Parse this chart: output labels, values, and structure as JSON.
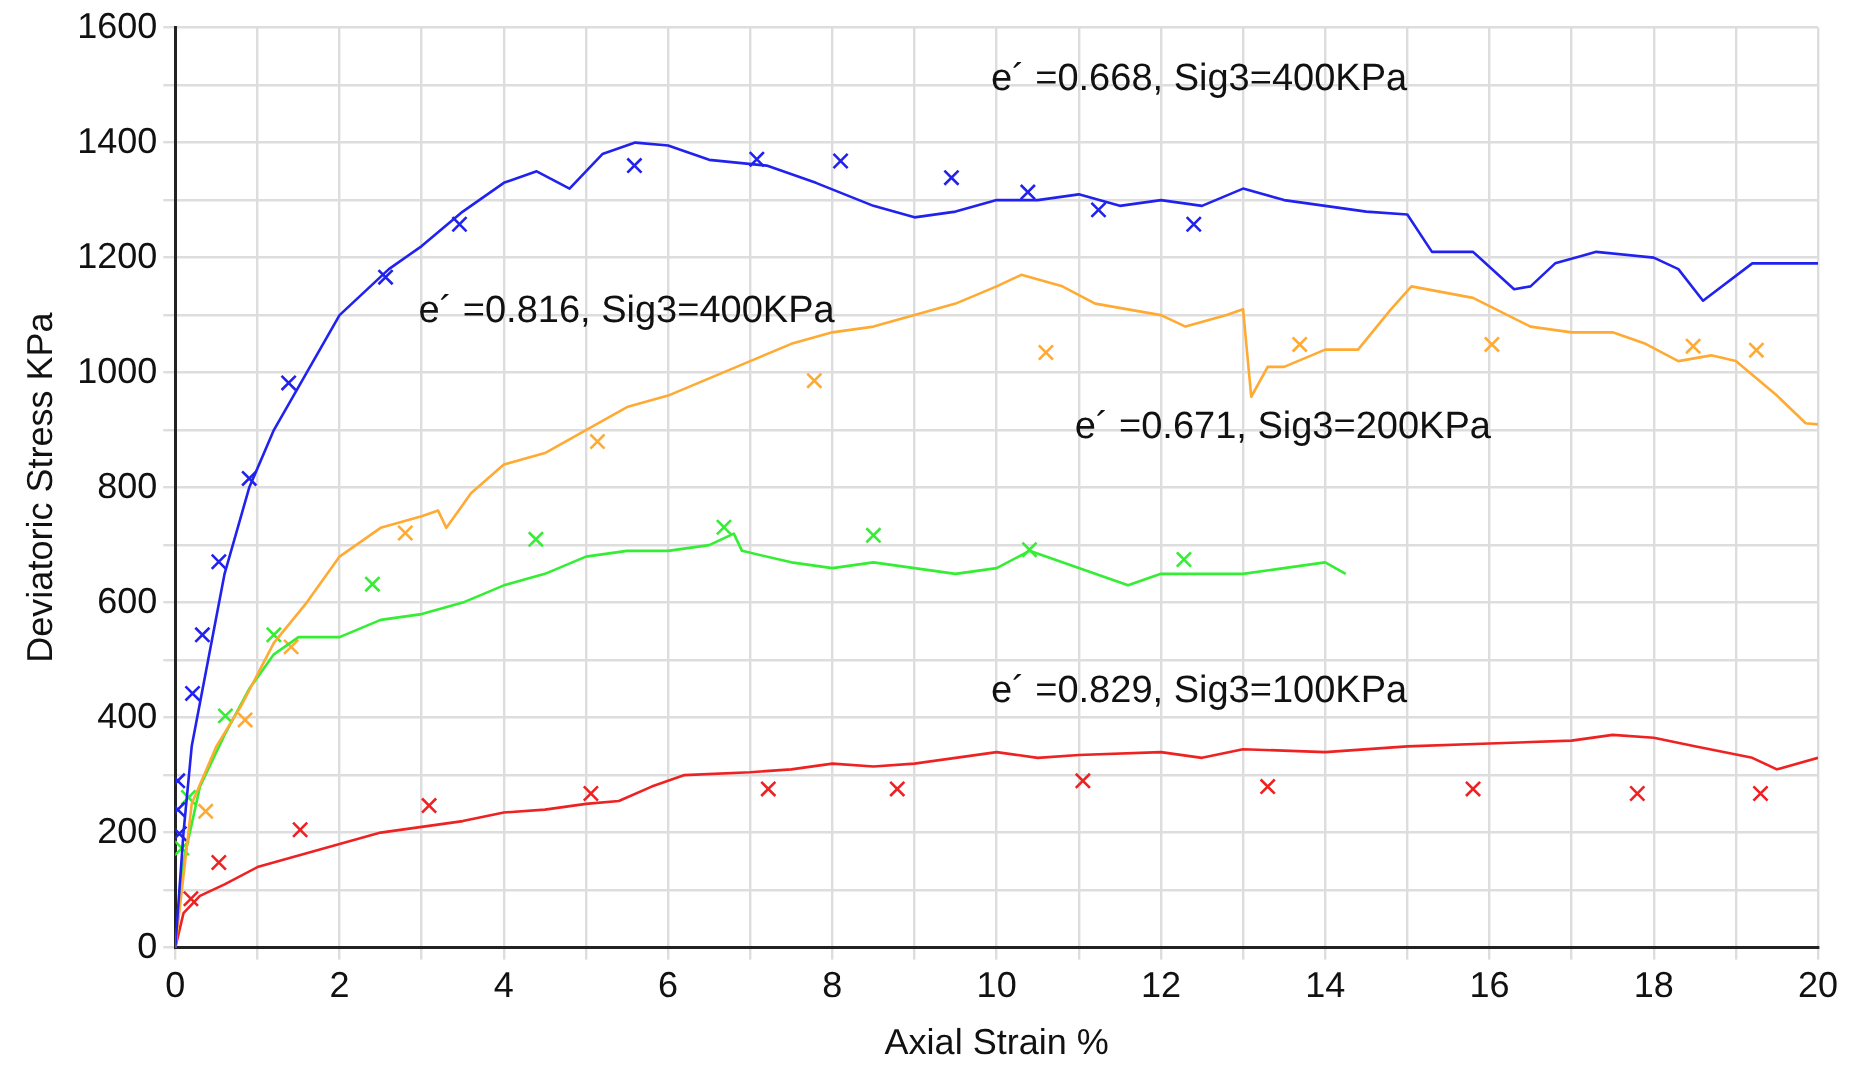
{
  "chart_data": {
    "type": "line",
    "xlabel": "Axial Strain %",
    "ylabel": "Deviatoric Stress KPa",
    "xlim": [
      0,
      20
    ],
    "ylim": [
      0,
      1600
    ],
    "xticks": [
      0,
      {
        "value": 1,
        "label": null
      },
      2,
      {
        "value": 3,
        "label": null
      },
      4,
      {
        "value": 5,
        "label": null
      },
      6,
      {
        "value": 7,
        "label": null
      },
      8,
      {
        "value": 9,
        "label": null
      },
      10,
      {
        "value": 11,
        "label": null
      },
      12,
      {
        "value": 13,
        "label": null
      },
      14,
      {
        "value": 15,
        "label": null
      },
      16,
      {
        "value": 17,
        "label": null
      },
      18,
      {
        "value": 19,
        "label": null
      },
      20
    ],
    "yticks": [
      0,
      {
        "value": 100,
        "label": null
      },
      200,
      {
        "value": 300,
        "label": null
      },
      400,
      {
        "value": 500,
        "label": null
      },
      600,
      {
        "value": 700,
        "label": null
      },
      800,
      {
        "value": 900,
        "label": null
      },
      1000,
      {
        "value": 1100,
        "label": null
      },
      1200,
      {
        "value": 1300,
        "label": null
      },
      1400,
      {
        "value": 1500,
        "label": null
      },
      1600
    ],
    "grid": true,
    "legend": false,
    "annotations": [
      "e´ =0.668, Sig3=400KPa",
      "e´ =0.816, Sig3=400KPa",
      "e´ =0.671, Sig3=200KPa",
      "e´ =0.829, Sig3=100KPa"
    ],
    "series": [
      {
        "type": "line",
        "color": "#2222ee",
        "marker": "none",
        "line_style": "solid",
        "x": [
          0,
          0.1,
          0.2,
          0.4,
          0.6,
          0.9,
          1.2,
          1.6,
          2.0,
          2.6,
          3.0,
          3.5,
          4.0,
          4.4,
          4.8,
          5.2,
          5.6,
          6.0,
          6.5,
          7.2,
          7.8,
          8.5,
          9.0,
          9.5,
          10.0,
          10.5,
          11.0,
          11.5,
          12.0,
          12.5,
          13.0,
          13.5,
          14.0,
          14.5,
          15.0,
          15.3,
          15.8,
          16.3,
          16.5,
          16.8,
          17.3,
          18.0,
          18.3,
          18.6,
          19.2,
          20
        ],
        "values": [
          0,
          200,
          350,
          500,
          650,
          800,
          900,
          1000,
          1100,
          1180,
          1220,
          1280,
          1330,
          1350,
          1320,
          1380,
          1400,
          1395,
          1370,
          1360,
          1330,
          1290,
          1270,
          1280,
          1300,
          1300,
          1310,
          1290,
          1300,
          1290,
          1320,
          1300,
          1290,
          1280,
          1275,
          1210,
          1210,
          1145,
          1150,
          1190,
          1210,
          1200,
          1180,
          1125,
          1190,
          1190
        ]
      },
      {
        "type": "line",
        "color": "#ffaa33",
        "marker": "none",
        "line_style": "solid",
        "x": [
          0,
          0.2,
          0.5,
          0.8,
          1.2,
          1.6,
          2.0,
          2.5,
          3.0,
          3.2,
          3.3,
          3.6,
          4.0,
          4.5,
          5.0,
          5.5,
          6.0,
          6.5,
          7.0,
          7.5,
          8.0,
          8.5,
          9.0,
          9.5,
          10.0,
          10.3,
          10.8,
          11.2,
          12.0,
          12.3,
          12.8,
          13.0,
          13.1,
          13.3,
          13.5,
          14.0,
          14.4,
          14.8,
          15.05,
          15.8,
          16.5,
          17.0,
          17.5,
          17.9,
          18.3,
          18.7,
          19.0,
          19.5,
          19.85,
          20
        ],
        "values": [
          0,
          250,
          350,
          420,
          530,
          600,
          680,
          730,
          750,
          760,
          730,
          790,
          840,
          860,
          900,
          940,
          960,
          990,
          1020,
          1050,
          1070,
          1080,
          1100,
          1120,
          1150,
          1170,
          1150,
          1120,
          1100,
          1080,
          1100,
          1110,
          958,
          1010,
          1010,
          1040,
          1040,
          1110,
          1150,
          1130,
          1080,
          1070,
          1070,
          1050,
          1020,
          1030,
          1020,
          960,
          912,
          910
        ]
      },
      {
        "type": "line",
        "color": "#33ee33",
        "marker": "none",
        "line_style": "solid",
        "x": [
          0,
          0.1,
          0.3,
          0.6,
          0.9,
          1.2,
          1.5,
          2.0,
          2.5,
          3.0,
          3.5,
          4.0,
          4.5,
          5.0,
          5.5,
          6.0,
          6.5,
          6.8,
          6.9,
          7.5,
          8.0,
          8.5,
          9.0,
          9.5,
          10.0,
          10.4,
          11.0,
          11.6,
          12.0,
          12.5,
          13.0,
          13.5,
          14.0,
          14.25
        ],
        "values": [
          0,
          150,
          280,
          370,
          450,
          510,
          540,
          540,
          570,
          580,
          600,
          630,
          650,
          680,
          690,
          690,
          700,
          720,
          690,
          670,
          660,
          670,
          660,
          650,
          660,
          690,
          660,
          630,
          650,
          650,
          650,
          660,
          670,
          650
        ]
      },
      {
        "type": "line",
        "color": "#ee2222",
        "marker": "none",
        "line_style": "solid",
        "x": [
          0,
          0.1,
          0.3,
          0.6,
          1.0,
          1.5,
          2.0,
          2.5,
          3.0,
          3.5,
          4.0,
          4.5,
          5.0,
          5.4,
          5.8,
          6.2,
          7.0,
          7.5,
          8.0,
          8.5,
          9.0,
          9.5,
          10.0,
          10.5,
          11.0,
          12.0,
          12.5,
          13.0,
          14.0,
          15.0,
          16.0,
          17.0,
          17.5,
          18.0,
          18.5,
          19.2,
          19.5,
          20
        ],
        "values": [
          0,
          60,
          90,
          110,
          140,
          160,
          180,
          200,
          210,
          220,
          235,
          240,
          250,
          255,
          280,
          300,
          305,
          310,
          320,
          315,
          320,
          330,
          340,
          330,
          335,
          340,
          330,
          345,
          340,
          350,
          355,
          360,
          370,
          365,
          350,
          330,
          310,
          330
        ]
      },
      {
        "type": "scatter",
        "color": "#2222ee",
        "marker": "cross",
        "x": [
          0.03,
          0.03,
          0.05,
          0.21,
          0.33,
          0.53,
          0.9,
          1.38,
          2.56,
          3.46,
          5.59,
          7.08,
          8.1,
          9.45,
          10.38,
          11.24,
          12.4
        ],
        "values": [
          290,
          240,
          198,
          442,
          544,
          671,
          816,
          982,
          1166,
          1258,
          1360,
          1371,
          1368,
          1339,
          1314,
          1283,
          1258
        ]
      },
      {
        "type": "scatter",
        "color": "#ffaa33",
        "marker": "cross",
        "x": [
          0.37,
          0.85,
          1.41,
          2.8,
          5.14,
          7.78,
          10.6,
          13.69,
          16.03,
          18.48,
          19.25
        ],
        "values": [
          237,
          396,
          523,
          721,
          880,
          986,
          1035,
          1049,
          1049,
          1046,
          1039
        ]
      },
      {
        "type": "scatter",
        "color": "#33ee33",
        "marker": "cross",
        "x": [
          0.08,
          0.16,
          0.61,
          1.2,
          2.4,
          4.39,
          6.68,
          8.5,
          10.4,
          12.28
        ],
        "values": [
          173,
          261,
          403,
          544,
          632,
          710,
          731,
          717,
          692,
          675
        ]
      },
      {
        "type": "scatter",
        "color": "#ee2222",
        "marker": "cross",
        "x": [
          0.19,
          0.53,
          1.52,
          3.09,
          5.06,
          7.22,
          8.79,
          11.05,
          13.3,
          15.8,
          17.8,
          19.3
        ],
        "values": [
          85,
          148,
          205,
          247,
          268,
          276,
          276,
          290,
          280,
          276,
          268,
          268
        ]
      }
    ]
  }
}
